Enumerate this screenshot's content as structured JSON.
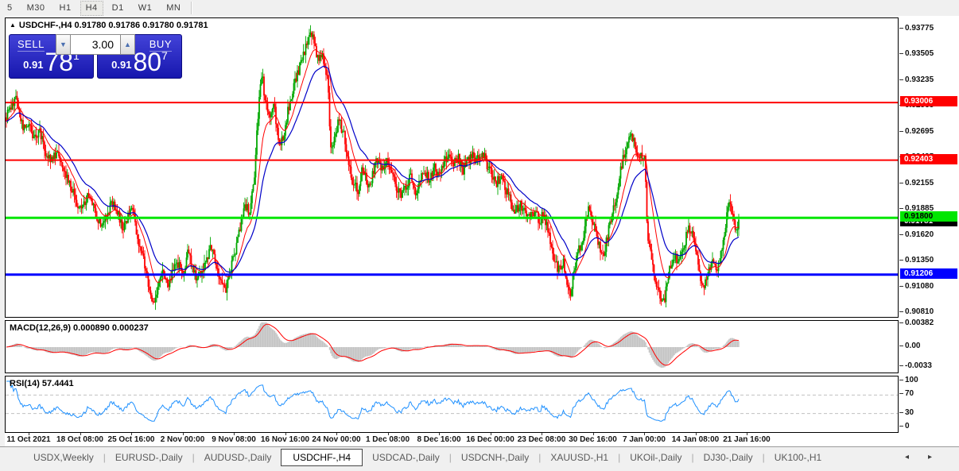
{
  "toolbar": {
    "timeframes": [
      "5",
      "M30",
      "H1",
      "H4",
      "D1",
      "W1",
      "MN"
    ],
    "active_timeframe": "H4"
  },
  "chart_header": {
    "collapse_icon": "▲",
    "symbol_period": "USDCHF-,H4",
    "open": "0.91780",
    "high": "0.91786",
    "low": "0.91780",
    "close": "0.91781"
  },
  "trade_panel": {
    "sell_label": "SELL",
    "buy_label": "BUY",
    "volume": "3.00",
    "spinner_down": "▼",
    "spinner_up": "▲",
    "sell_price": {
      "small": "0.91",
      "big": "78",
      "sup": "1"
    },
    "buy_price": {
      "small": "0.91",
      "big": "80",
      "sup": "7"
    },
    "panel_color": "#2222c0"
  },
  "chart_data": {
    "type": "candlestick",
    "symbol": "USDCHF-,H4",
    "y_axis": {
      "ticks": [
        "0.93775",
        "0.93505",
        "0.93235",
        "0.92965",
        "0.92695",
        "0.92425",
        "0.92155",
        "0.91885",
        "0.91620",
        "0.91350",
        "0.91080",
        "0.90810"
      ],
      "top_tick_value": 0.93775,
      "tick_step": 0.0027
    },
    "x_axis": {
      "labels": [
        "11 Oct 2021",
        "18 Oct 08:00",
        "25 Oct 16:00",
        "2 Nov 00:00",
        "9 Nov 08:00",
        "16 Nov 16:00",
        "24 Nov 00:00",
        "1 Dec 08:00",
        "8 Dec 16:00",
        "16 Dec 00:00",
        "23 Dec 08:00",
        "30 Dec 16:00",
        "7 Jan 00:00",
        "14 Jan 08:00",
        "21 Jan 16:00"
      ]
    },
    "hlines": [
      {
        "price": 0.93006,
        "label": "0.93006",
        "color": "#ff0000",
        "text_color": "#ffffff",
        "width": 2
      },
      {
        "price": 0.92403,
        "label": "0.92403",
        "color": "#ff0000",
        "text_color": "#ffffff",
        "width": 2
      },
      {
        "price": 0.918,
        "label": "0.91800",
        "color": "#00e600",
        "text_color": "#000000",
        "width": 3
      },
      {
        "price": 0.91206,
        "label": "0.91206",
        "color": "#0000ff",
        "text_color": "#ffffff",
        "width": 3
      }
    ],
    "current_price": {
      "value": 0.91781,
      "label": "0.91781",
      "bg": "#000000",
      "text_color": "#ffffff"
    },
    "candle_up_color": "#00a800",
    "candle_down_color": "#ff0000",
    "ma_fast_color": "#ff0000",
    "ma_slow_color": "#0000c8",
    "price_keyframes": [
      [
        8,
        0.9285
      ],
      [
        14,
        0.9296
      ],
      [
        20,
        0.9306
      ],
      [
        24,
        0.929
      ],
      [
        30,
        0.9272
      ],
      [
        36,
        0.928
      ],
      [
        42,
        0.9262
      ],
      [
        50,
        0.9271
      ],
      [
        58,
        0.9247
      ],
      [
        66,
        0.9241
      ],
      [
        72,
        0.9252
      ],
      [
        80,
        0.9234
      ],
      [
        88,
        0.9214
      ],
      [
        94,
        0.9201
      ],
      [
        100,
        0.9187
      ],
      [
        106,
        0.9196
      ],
      [
        112,
        0.9204
      ],
      [
        120,
        0.9186
      ],
      [
        128,
        0.9169
      ],
      [
        134,
        0.9183
      ],
      [
        142,
        0.9197
      ],
      [
        148,
        0.9184
      ],
      [
        154,
        0.9168
      ],
      [
        160,
        0.918
      ],
      [
        166,
        0.919
      ],
      [
        172,
        0.9162
      ],
      [
        178,
        0.9147
      ],
      [
        184,
        0.9121
      ],
      [
        190,
        0.9098
      ],
      [
        194,
        0.9091
      ],
      [
        200,
        0.9113
      ],
      [
        206,
        0.9124
      ],
      [
        212,
        0.9111
      ],
      [
        218,
        0.9124
      ],
      [
        224,
        0.9132
      ],
      [
        230,
        0.9117
      ],
      [
        236,
        0.9147
      ],
      [
        242,
        0.9128
      ],
      [
        248,
        0.9117
      ],
      [
        254,
        0.9126
      ],
      [
        260,
        0.9137
      ],
      [
        266,
        0.915
      ],
      [
        272,
        0.9126
      ],
      [
        278,
        0.9117
      ],
      [
        284,
        0.9104
      ],
      [
        290,
        0.9126
      ],
      [
        296,
        0.9147
      ],
      [
        302,
        0.917
      ],
      [
        308,
        0.9194
      ],
      [
        314,
        0.9186
      ],
      [
        320,
        0.9225
      ],
      [
        326,
        0.9307
      ],
      [
        330,
        0.9327
      ],
      [
        334,
        0.9299
      ],
      [
        340,
        0.9286
      ],
      [
        344,
        0.9302
      ],
      [
        350,
        0.9259
      ],
      [
        356,
        0.9263
      ],
      [
        362,
        0.9292
      ],
      [
        368,
        0.9312
      ],
      [
        374,
        0.9331
      ],
      [
        380,
        0.9346
      ],
      [
        386,
        0.9361
      ],
      [
        392,
        0.9372
      ],
      [
        396,
        0.9359
      ],
      [
        400,
        0.9346
      ],
      [
        404,
        0.9352
      ],
      [
        408,
        0.9339
      ],
      [
        412,
        0.9328
      ],
      [
        416,
        0.9252
      ],
      [
        420,
        0.9264
      ],
      [
        426,
        0.9281
      ],
      [
        432,
        0.9269
      ],
      [
        438,
        0.9241
      ],
      [
        444,
        0.9216
      ],
      [
        450,
        0.9208
      ],
      [
        456,
        0.9234
      ],
      [
        462,
        0.9213
      ],
      [
        468,
        0.9223
      ],
      [
        474,
        0.9244
      ],
      [
        480,
        0.923
      ],
      [
        486,
        0.9241
      ],
      [
        492,
        0.9227
      ],
      [
        498,
        0.9214
      ],
      [
        504,
        0.9201
      ],
      [
        510,
        0.9211
      ],
      [
        516,
        0.9224
      ],
      [
        522,
        0.9206
      ],
      [
        528,
        0.9218
      ],
      [
        534,
        0.9229
      ],
      [
        540,
        0.9221
      ],
      [
        546,
        0.9234
      ],
      [
        552,
        0.9224
      ],
      [
        558,
        0.9239
      ],
      [
        564,
        0.9247
      ],
      [
        570,
        0.9237
      ],
      [
        576,
        0.9244
      ],
      [
        582,
        0.9229
      ],
      [
        588,
        0.9239
      ],
      [
        594,
        0.9247
      ],
      [
        600,
        0.9241
      ],
      [
        606,
        0.9249
      ],
      [
        612,
        0.9237
      ],
      [
        618,
        0.9227
      ],
      [
        624,
        0.9217
      ],
      [
        630,
        0.9221
      ],
      [
        636,
        0.9211
      ],
      [
        642,
        0.9197
      ],
      [
        648,
        0.9185
      ],
      [
        654,
        0.9195
      ],
      [
        660,
        0.9187
      ],
      [
        666,
        0.9179
      ],
      [
        672,
        0.9187
      ],
      [
        678,
        0.9177
      ],
      [
        684,
        0.9184
      ],
      [
        690,
        0.9163
      ],
      [
        696,
        0.9137
      ],
      [
        702,
        0.9124
      ],
      [
        708,
        0.9136
      ],
      [
        714,
        0.9111
      ],
      [
        718,
        0.9102
      ],
      [
        722,
        0.9126
      ],
      [
        728,
        0.9147
      ],
      [
        734,
        0.9163
      ],
      [
        740,
        0.9187
      ],
      [
        746,
        0.9174
      ],
      [
        752,
        0.9154
      ],
      [
        758,
        0.9139
      ],
      [
        764,
        0.9161
      ],
      [
        770,
        0.9186
      ],
      [
        776,
        0.9206
      ],
      [
        782,
        0.9236
      ],
      [
        788,
        0.9256
      ],
      [
        794,
        0.9267
      ],
      [
        800,
        0.925
      ],
      [
        806,
        0.9247
      ],
      [
        811,
        0.9239
      ],
      [
        814,
        0.9163
      ],
      [
        818,
        0.9149
      ],
      [
        824,
        0.9117
      ],
      [
        830,
        0.9099
      ],
      [
        836,
        0.9094
      ],
      [
        842,
        0.9129
      ],
      [
        848,
        0.9141
      ],
      [
        854,
        0.9134
      ],
      [
        860,
        0.9151
      ],
      [
        866,
        0.9169
      ],
      [
        872,
        0.9159
      ],
      [
        878,
        0.9129
      ],
      [
        884,
        0.9104
      ],
      [
        890,
        0.9119
      ],
      [
        896,
        0.9136
      ],
      [
        902,
        0.9129
      ],
      [
        908,
        0.9146
      ],
      [
        914,
        0.9181
      ],
      [
        918,
        0.9201
      ],
      [
        922,
        0.9177
      ],
      [
        926,
        0.9163
      ],
      [
        930,
        0.9178
      ]
    ],
    "indicators": {
      "macd": {
        "label": "MACD(12,26,9)",
        "main_value": "0.000890",
        "signal_value": "0.000237",
        "ticks": [
          "0.00382",
          "0.00",
          "-0.0033"
        ],
        "histogram_color": "#c4c4c4",
        "signal_color": "#ff0000"
      },
      "rsi": {
        "label": "RSI(14)",
        "value": "57.4441",
        "ticks": [
          "100",
          "70",
          "30",
          "0"
        ],
        "levels": [
          70,
          30
        ],
        "level_color": "#c0c0c0",
        "line_color": "#1e90ff"
      }
    }
  },
  "tab_bar": {
    "tabs": [
      "USDX,Weekly",
      "EURUSD-,Daily",
      "AUDUSD-,Daily",
      "USDCHF-,H4",
      "USDCAD-,Daily",
      "USDCNH-,Daily",
      "XAUUSD-,H1",
      "UKOil-,Daily",
      "DJ30-,Daily",
      "UK100-,H1"
    ],
    "active_tab": "USDCHF-,H4",
    "scroll_left_icon": "◂",
    "scroll_right_icon": "▸"
  }
}
